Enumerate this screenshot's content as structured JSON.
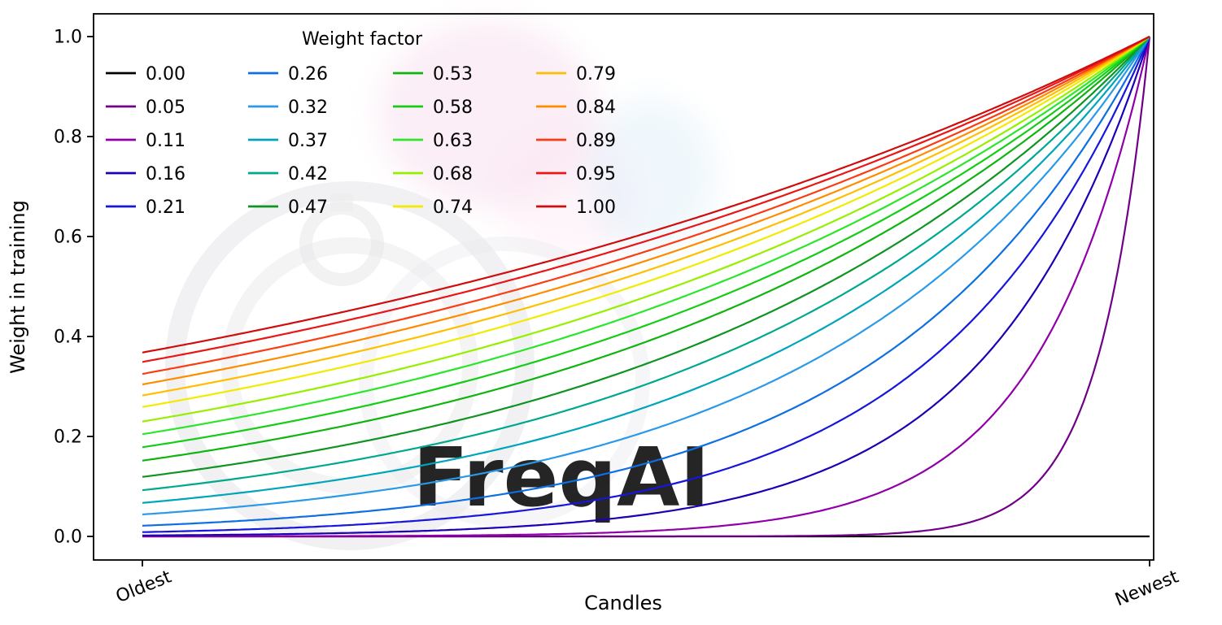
{
  "figure": {
    "background": "#ffffff",
    "watermark_text": "FreqAI"
  },
  "chart_data": {
    "type": "line",
    "title": "",
    "xlabel": "Candles",
    "ylabel": "Weight in training",
    "x_tick_labels": [
      "Oldest",
      "Newest"
    ],
    "y_tick_labels": [
      "0.0",
      "0.2",
      "0.4",
      "0.6",
      "0.8",
      "1.0"
    ],
    "y_ticks": [
      0,
      0.2,
      0.4,
      0.6,
      0.8,
      1
    ],
    "ylim": [
      0,
      1
    ],
    "xlim": [
      0,
      1
    ],
    "grid": false,
    "legend": {
      "title": "Weight factor",
      "position": "upper-left",
      "ncol": 4,
      "rows_per_col": 5
    },
    "curve_formula": "weight(x) = exp(-(1 - x) / factor) for factor > 0; factor 0.00 stays flat at 0; x runs from 0 (Oldest) to 1 (Newest), weight reaches 1.0 at Newest",
    "series": [
      {
        "name": "0.00",
        "factor": 0.0,
        "color": "#000000"
      },
      {
        "name": "0.05",
        "factor": 0.05,
        "color": "#6f0087"
      },
      {
        "name": "0.11",
        "factor": 0.11,
        "color": "#9000a8"
      },
      {
        "name": "0.16",
        "factor": 0.16,
        "color": "#1c00b4"
      },
      {
        "name": "0.21",
        "factor": 0.21,
        "color": "#1616dd"
      },
      {
        "name": "0.26",
        "factor": 0.26,
        "color": "#0d6fe2"
      },
      {
        "name": "0.32",
        "factor": 0.32,
        "color": "#2b99e8"
      },
      {
        "name": "0.37",
        "factor": 0.37,
        "color": "#00a5bb"
      },
      {
        "name": "0.42",
        "factor": 0.42,
        "color": "#00a88e"
      },
      {
        "name": "0.47",
        "factor": 0.47,
        "color": "#0f9322"
      },
      {
        "name": "0.53",
        "factor": 0.53,
        "color": "#0fb40f"
      },
      {
        "name": "0.58",
        "factor": 0.58,
        "color": "#15cd15"
      },
      {
        "name": "0.63",
        "factor": 0.63,
        "color": "#2ce62c"
      },
      {
        "name": "0.68",
        "factor": 0.68,
        "color": "#97ef00"
      },
      {
        "name": "0.74",
        "factor": 0.74,
        "color": "#f2ea00"
      },
      {
        "name": "0.79",
        "factor": 0.79,
        "color": "#ffbf00"
      },
      {
        "name": "0.84",
        "factor": 0.84,
        "color": "#ff8c00"
      },
      {
        "name": "0.89",
        "factor": 0.89,
        "color": "#fa3c14"
      },
      {
        "name": "0.95",
        "factor": 0.95,
        "color": "#e91616"
      },
      {
        "name": "1.00",
        "factor": 1.0,
        "color": "#cf0d0d"
      }
    ]
  }
}
